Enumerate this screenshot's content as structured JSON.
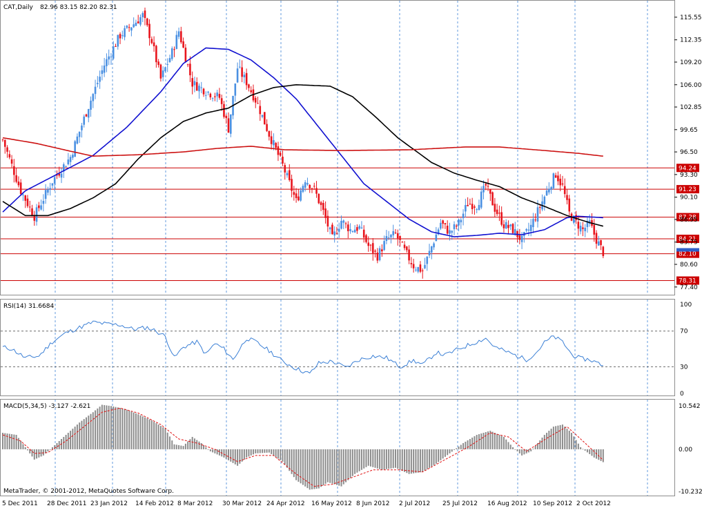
{
  "header": {
    "symbol": "CAT,Daily",
    "ohlc": "82.96 83.15 82.20 82.31"
  },
  "footer": {
    "copyright": "MetaTrader, © 2001-2012, MetaQuotes Software Corp."
  },
  "colors": {
    "bull": "#4a90e2",
    "bear": "#e8141c",
    "ma_blue": "#1010d0",
    "ma_black": "#000000",
    "ma_red": "#cc1111",
    "line_red": "#cc0000",
    "rsi": "#3a7fd5",
    "macd_bar": "#8c8c8c",
    "macd_signal": "#e01010",
    "grid": "#3a7fd5",
    "border": "#8c8c8c"
  },
  "chart_data": [
    {
      "type": "candlestick",
      "panel": "price",
      "title": "CAT,Daily",
      "ylim": [
        76.6,
        117.2
      ],
      "y_ticks": [
        115.55,
        112.35,
        109.2,
        106.0,
        102.85,
        99.65,
        96.5,
        93.3,
        90.1,
        86.95,
        83.75,
        80.6,
        77.4
      ],
      "x_ticks": [
        "5 Dec 2011",
        "28 Dec 2011",
        "23 Jan 2012",
        "14 Feb 2012",
        "8 Mar 2012",
        "30 Mar 2012",
        "24 Apr 2012",
        "16 May 2012",
        "8 Jun 2012",
        "2 Jul 2012",
        "25 Jul 2012",
        "16 Aug 2012",
        "10 Sep 2012",
        "2 Oct 2012"
      ],
      "horizontal_lines": [
        94.24,
        91.23,
        87.28,
        84.21,
        82.1,
        78.31
      ],
      "current_price": 82.31,
      "close_anchors": [
        [
          0,
          98.2
        ],
        [
          8,
          91.0
        ],
        [
          14,
          87.4
        ],
        [
          22,
          92.4
        ],
        [
          30,
          95.8
        ],
        [
          38,
          103.0
        ],
        [
          45,
          108.8
        ],
        [
          52,
          113.0
        ],
        [
          58,
          114.6
        ],
        [
          62,
          115.8
        ],
        [
          66,
          112.2
        ],
        [
          70,
          106.8
        ],
        [
          75,
          110.6
        ],
        [
          78,
          113.6
        ],
        [
          84,
          106.2
        ],
        [
          92,
          104.8
        ],
        [
          96,
          104.2
        ],
        [
          100,
          99.8
        ],
        [
          104,
          108.4
        ],
        [
          108,
          106.4
        ],
        [
          113,
          103.2
        ],
        [
          118,
          99.0
        ],
        [
          124,
          94.6
        ],
        [
          130,
          89.5
        ],
        [
          134,
          92.7
        ],
        [
          138,
          91.2
        ],
        [
          142,
          88.0
        ],
        [
          146,
          84.2
        ],
        [
          150,
          86.8
        ],
        [
          154,
          85.5
        ],
        [
          158,
          85.8
        ],
        [
          162,
          83.2
        ],
        [
          166,
          81.8
        ],
        [
          170,
          84.1
        ],
        [
          174,
          84.9
        ],
        [
          178,
          82.5
        ],
        [
          182,
          80.4
        ],
        [
          186,
          79.7
        ],
        [
          190,
          83.1
        ],
        [
          194,
          86.5
        ],
        [
          198,
          85.1
        ],
        [
          202,
          86.4
        ],
        [
          206,
          89.2
        ],
        [
          210,
          89.0
        ],
        [
          214,
          91.7
        ],
        [
          218,
          88.5
        ],
        [
          222,
          86.2
        ],
        [
          226,
          85.5
        ],
        [
          230,
          84.0
        ],
        [
          234,
          86.0
        ],
        [
          238,
          88.8
        ],
        [
          242,
          91.6
        ],
        [
          245,
          93.4
        ],
        [
          248,
          91.6
        ],
        [
          251,
          87.8
        ],
        [
          254,
          86.5
        ],
        [
          257,
          85.5
        ],
        [
          260,
          86.4
        ],
        [
          263,
          84.1
        ],
        [
          266,
          82.31
        ]
      ],
      "series": [
        {
          "name": "MA blue",
          "points": [
            [
              0,
              88.0
            ],
            [
              10,
              91.0
            ],
            [
              25,
              93.5
            ],
            [
              40,
              96.0
            ],
            [
              55,
              100.0
            ],
            [
              70,
              105.0
            ],
            [
              80,
              109.0
            ],
            [
              90,
              111.2
            ],
            [
              100,
              111.0
            ],
            [
              110,
              109.5
            ],
            [
              120,
              107.0
            ],
            [
              130,
              104.0
            ],
            [
              140,
              100.0
            ],
            [
              150,
              96.0
            ],
            [
              160,
              92.0
            ],
            [
              170,
              89.5
            ],
            [
              180,
              87.0
            ],
            [
              190,
              85.2
            ],
            [
              200,
              84.5
            ],
            [
              210,
              84.7
            ],
            [
              220,
              85.0
            ],
            [
              230,
              84.8
            ],
            [
              240,
              85.5
            ],
            [
              250,
              87.2
            ],
            [
              255,
              87.4
            ],
            [
              266,
              87.2
            ]
          ]
        },
        {
          "name": "MA black",
          "points": [
            [
              0,
              89.5
            ],
            [
              10,
              87.5
            ],
            [
              20,
              87.5
            ],
            [
              30,
              88.5
            ],
            [
              40,
              90.0
            ],
            [
              50,
              92.0
            ],
            [
              60,
              95.5
            ],
            [
              70,
              98.5
            ],
            [
              80,
              100.8
            ],
            [
              90,
              102.0
            ],
            [
              100,
              102.7
            ],
            [
              110,
              104.5
            ],
            [
              120,
              105.6
            ],
            [
              130,
              106.0
            ],
            [
              145,
              105.8
            ],
            [
              155,
              104.3
            ],
            [
              165,
              101.5
            ],
            [
              175,
              98.5
            ],
            [
              190,
              95.0
            ],
            [
              200,
              93.5
            ],
            [
              210,
              92.5
            ],
            [
              220,
              91.6
            ],
            [
              230,
              90.0
            ],
            [
              240,
              88.8
            ],
            [
              250,
              87.5
            ],
            [
              260,
              86.5
            ],
            [
              266,
              86.0
            ]
          ]
        },
        {
          "name": "MA red",
          "points": [
            [
              0,
              98.5
            ],
            [
              15,
              97.7
            ],
            [
              30,
              96.6
            ],
            [
              40,
              95.9
            ],
            [
              60,
              96.1
            ],
            [
              80,
              96.5
            ],
            [
              95,
              97.0
            ],
            [
              110,
              97.3
            ],
            [
              125,
              96.8
            ],
            [
              150,
              96.7
            ],
            [
              180,
              96.8
            ],
            [
              205,
              97.2
            ],
            [
              220,
              97.2
            ],
            [
              240,
              96.7
            ],
            [
              255,
              96.3
            ],
            [
              266,
              95.9
            ]
          ]
        }
      ]
    },
    {
      "type": "line",
      "panel": "rsi",
      "title": "RSI(14) 31.6684",
      "ylim": [
        0,
        100
      ],
      "y_ticks": [
        100,
        70,
        30,
        0
      ],
      "levels": [
        70,
        30
      ],
      "series": [
        {
          "name": "RSI(14)",
          "anchors": [
            [
              0,
              52
            ],
            [
              4,
              50
            ],
            [
              10,
              40
            ],
            [
              16,
              42
            ],
            [
              22,
              58
            ],
            [
              28,
              68
            ],
            [
              34,
              74
            ],
            [
              40,
              80
            ],
            [
              46,
              78
            ],
            [
              52,
              77
            ],
            [
              58,
              72
            ],
            [
              64,
              74
            ],
            [
              68,
              70
            ],
            [
              72,
              64
            ],
            [
              76,
              40
            ],
            [
              80,
              52
            ],
            [
              86,
              58
            ],
            [
              90,
              44
            ],
            [
              94,
              56
            ],
            [
              98,
              50
            ],
            [
              102,
              38
            ],
            [
              108,
              62
            ],
            [
              112,
              58
            ],
            [
              118,
              48
            ],
            [
              124,
              36
            ],
            [
              130,
              28
            ],
            [
              136,
              22
            ],
            [
              140,
              34
            ],
            [
              146,
              36
            ],
            [
              152,
              29
            ],
            [
              158,
              38
            ],
            [
              164,
              42
            ],
            [
              170,
              40
            ],
            [
              176,
              30
            ],
            [
              182,
              37
            ],
            [
              186,
              32
            ],
            [
              192,
              46
            ],
            [
              196,
              43
            ],
            [
              202,
              50
            ],
            [
              208,
              56
            ],
            [
              214,
              62
            ],
            [
              218,
              52
            ],
            [
              224,
              46
            ],
            [
              228,
              42
            ],
            [
              232,
              38
            ],
            [
              236,
              45
            ],
            [
              240,
              57
            ],
            [
              244,
              64
            ],
            [
              248,
              58
            ],
            [
              252,
              44
            ],
            [
              256,
              39
            ],
            [
              260,
              38
            ],
            [
              266,
              31.6684
            ]
          ]
        }
      ]
    },
    {
      "type": "bar",
      "panel": "macd",
      "title": "MACD(5,34,5) -3.127 -2.621",
      "ylim": [
        -10.232,
        10.542
      ],
      "y_ticks": [
        10.542,
        0.0,
        -10.232
      ],
      "series": [
        {
          "name": "MACD(5,34,5)",
          "anchors": [
            [
              0,
              4.0
            ],
            [
              6,
              3.5
            ],
            [
              10,
              0.5
            ],
            [
              14,
              -2.5
            ],
            [
              18,
              -1.5
            ],
            [
              22,
              0.5
            ],
            [
              28,
              3.5
            ],
            [
              34,
              6.5
            ],
            [
              40,
              9.0
            ],
            [
              44,
              10.8
            ],
            [
              48,
              10.5
            ],
            [
              54,
              9.8
            ],
            [
              60,
              8.5
            ],
            [
              66,
              7.0
            ],
            [
              72,
              5.0
            ],
            [
              76,
              1.2
            ],
            [
              80,
              0.8
            ],
            [
              84,
              3.0
            ],
            [
              88,
              1.5
            ],
            [
              92,
              -0.5
            ],
            [
              98,
              -2.0
            ],
            [
              104,
              -4.0
            ],
            [
              108,
              -2.0
            ],
            [
              112,
              -1.0
            ],
            [
              118,
              -0.8
            ],
            [
              124,
              -3.0
            ],
            [
              130,
              -7.5
            ],
            [
              136,
              -9.8
            ],
            [
              140,
              -9.5
            ],
            [
              144,
              -8.0
            ],
            [
              150,
              -9.0
            ],
            [
              156,
              -6.0
            ],
            [
              162,
              -4.0
            ],
            [
              168,
              -5.0
            ],
            [
              174,
              -4.5
            ],
            [
              180,
              -6.0
            ],
            [
              186,
              -5.5
            ],
            [
              192,
              -3.5
            ],
            [
              198,
              -1.0
            ],
            [
              204,
              1.5
            ],
            [
              210,
              3.5
            ],
            [
              216,
              4.5
            ],
            [
              222,
              3.0
            ],
            [
              226,
              0.5
            ],
            [
              230,
              -1.5
            ],
            [
              234,
              -0.5
            ],
            [
              240,
              3.5
            ],
            [
              244,
              5.5
            ],
            [
              248,
              6.0
            ],
            [
              252,
              4.0
            ],
            [
              256,
              0.5
            ],
            [
              262,
              -2.0
            ],
            [
              266,
              -3.127
            ]
          ]
        },
        {
          "name": "Signal",
          "anchors": [
            [
              0,
              3.5
            ],
            [
              8,
              2.0
            ],
            [
              14,
              -1.0
            ],
            [
              20,
              -0.8
            ],
            [
              28,
              2.0
            ],
            [
              36,
              5.5
            ],
            [
              44,
              9.0
            ],
            [
              52,
              10.0
            ],
            [
              60,
              8.8
            ],
            [
              70,
              6.0
            ],
            [
              78,
              2.5
            ],
            [
              86,
              1.5
            ],
            [
              94,
              0.0
            ],
            [
              104,
              -3.0
            ],
            [
              112,
              -1.5
            ],
            [
              120,
              -1.5
            ],
            [
              130,
              -6.0
            ],
            [
              138,
              -9.0
            ],
            [
              146,
              -8.5
            ],
            [
              154,
              -7.0
            ],
            [
              164,
              -5.0
            ],
            [
              176,
              -5.0
            ],
            [
              186,
              -5.5
            ],
            [
              196,
              -2.5
            ],
            [
              206,
              0.5
            ],
            [
              216,
              4.0
            ],
            [
              224,
              3.0
            ],
            [
              232,
              -0.5
            ],
            [
              242,
              3.0
            ],
            [
              250,
              5.5
            ],
            [
              258,
              1.5
            ],
            [
              266,
              -2.621
            ]
          ]
        }
      ]
    }
  ]
}
